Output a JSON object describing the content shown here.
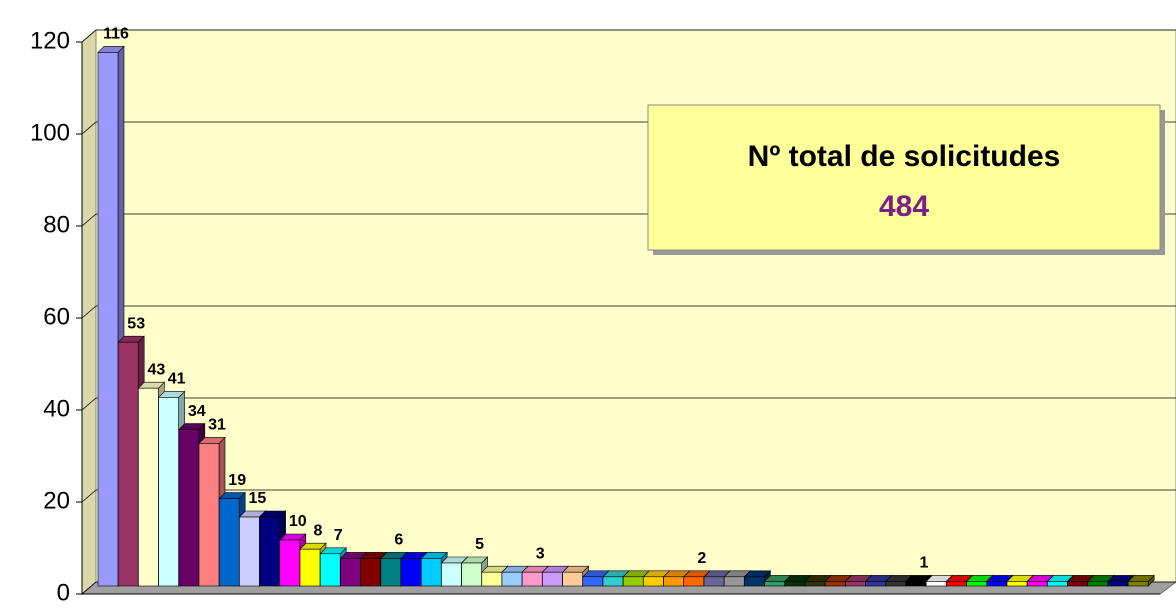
{
  "chart_data": {
    "type": "bar",
    "values": [
      116,
      53,
      43,
      41,
      34,
      31,
      19,
      15,
      15,
      10,
      8,
      7,
      6,
      6,
      6,
      6,
      6,
      5,
      5,
      3,
      3,
      3,
      3,
      3,
      2,
      2,
      2,
      2,
      2,
      2,
      2,
      2,
      2,
      1,
      1,
      1,
      1,
      1,
      1,
      1,
      1,
      1,
      1,
      1,
      1,
      1,
      1,
      1,
      1,
      1,
      1,
      1
    ],
    "value_labels": [
      "116",
      "53",
      "43",
      "41",
      "34",
      "31",
      "19",
      "15",
      null,
      "10",
      "8",
      "7",
      null,
      null,
      "6",
      null,
      null,
      null,
      "5",
      null,
      null,
      "3",
      null,
      null,
      null,
      null,
      null,
      null,
      null,
      "2",
      null,
      null,
      null,
      null,
      null,
      null,
      null,
      null,
      null,
      null,
      "1",
      null,
      null,
      null,
      null,
      null,
      null,
      null,
      null,
      null,
      null,
      null
    ],
    "colors": [
      "#9999ff",
      "#993366",
      "#ffffcc",
      "#ccffff",
      "#660066",
      "#ff8080",
      "#0066cc",
      "#ccccff",
      "#000080",
      "#ff00ff",
      "#ffff00",
      "#00ffff",
      "#800080",
      "#800000",
      "#008080",
      "#0000ff",
      "#00ccff",
      "#ccffff",
      "#ccffcc",
      "#ffff99",
      "#99ccff",
      "#ff99cc",
      "#cc99ff",
      "#ffcc99",
      "#3366ff",
      "#33cccc",
      "#99cc00",
      "#ffcc00",
      "#ff9900",
      "#ff6600",
      "#666699",
      "#969696",
      "#003366",
      "#339966",
      "#003300",
      "#333300",
      "#993300",
      "#993366",
      "#333399",
      "#333333",
      "#000000",
      "#ffffff",
      "#ff0000",
      "#00ff00",
      "#0000ff",
      "#ffff00",
      "#ff00ff",
      "#00ffff",
      "#800000",
      "#008000",
      "#000080",
      "#808000"
    ],
    "ylim": [
      0,
      120
    ],
    "yticks": [
      0,
      20,
      40,
      60,
      80,
      100,
      120
    ],
    "grid": true,
    "annotation": {
      "title": "Nº total de solicitudes",
      "value": 484
    }
  }
}
